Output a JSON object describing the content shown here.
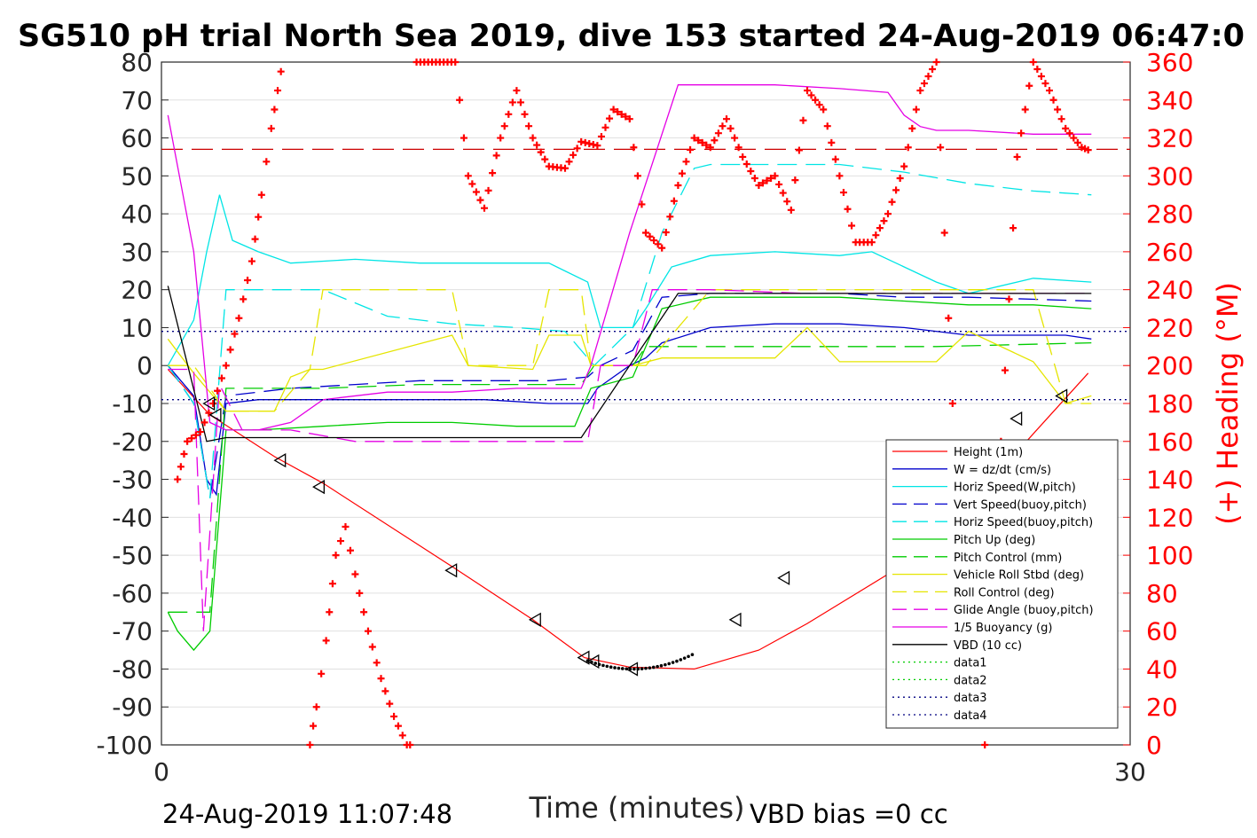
{
  "chart_data": {
    "type": "line",
    "title": "SG510 pH trial North Sea 2019, dive 153 started 24-Aug-2019 06:47:0",
    "xlabel": "Time (minutes)",
    "ylabel_right": "(+) Heading (°M)",
    "footer_left": "24-Aug-2019 11:07:48",
    "footer_right": "VBD bias =0 cc",
    "xlim": [
      0,
      30
    ],
    "ylim_left": [
      -100,
      80
    ],
    "ylim_right": [
      0,
      360
    ],
    "xticks": [
      "0",
      "30"
    ],
    "yticks_left": [
      "80",
      "70",
      "60",
      "50",
      "40",
      "30",
      "20",
      "10",
      "0",
      "-10",
      "-20",
      "-30",
      "-40",
      "-50",
      "-60",
      "-70",
      "-80",
      "-90",
      "-100"
    ],
    "yticks_right": [
      "360",
      "340",
      "320",
      "300",
      "280",
      "260",
      "240",
      "220",
      "200",
      "180",
      "160",
      "140",
      "120",
      "100",
      "80",
      "60",
      "40",
      "20",
      "0"
    ],
    "grid": true,
    "legend_position": "bottom-right",
    "series": [
      {
        "name": "Height (1m)",
        "color": "#ff0000",
        "style": "solid",
        "x": [
          0.2,
          1.5,
          3.5,
          5,
          9,
          11.5,
          13.1,
          14.5,
          16.5,
          18.5,
          20,
          22.5,
          25,
          27,
          28.7
        ],
        "y": [
          -1,
          -13,
          -24,
          -31,
          -53,
          -67,
          -77,
          -79.5,
          -80,
          -75,
          -68,
          -55,
          -37,
          -18,
          -2
        ]
      },
      {
        "name": "W = dz/dt (cm/s)",
        "color": "#0000cc",
        "style": "solid",
        "x": [
          0.2,
          1,
          1.4,
          1.7,
          2,
          3,
          4,
          6,
          8,
          10,
          12,
          13.2,
          13.5,
          14.5,
          15,
          15.5,
          17,
          19,
          21,
          23,
          25,
          26,
          28,
          28.8
        ],
        "y": [
          0,
          -8,
          -30,
          -34,
          -10,
          -9,
          -9,
          -9,
          -9,
          -9,
          -10,
          -10,
          -6,
          0,
          2,
          6,
          10,
          11,
          11,
          10,
          8,
          8,
          8,
          7
        ]
      },
      {
        "name": "Horiz Speed(W,pitch)",
        "color": "#00e5e5",
        "style": "solid",
        "x": [
          0.2,
          1,
          1.4,
          1.8,
          2.2,
          3,
          4,
          6,
          8,
          10,
          12,
          13.2,
          13.6,
          14.6,
          15,
          15.8,
          17,
          19,
          21,
          22,
          24,
          25,
          27,
          28.8
        ],
        "y": [
          0,
          12,
          30,
          45,
          33,
          30,
          27,
          28,
          27,
          27,
          27,
          22,
          10,
          10,
          15,
          26,
          29,
          30,
          29,
          30,
          22,
          19,
          23,
          22
        ]
      },
      {
        "name": "Vert Speed(buoy,pitch)",
        "color": "#0000cc",
        "style": "dashed",
        "x": [
          0.2,
          1,
          1.5,
          2,
          4,
          6,
          8,
          10,
          12,
          13.2,
          13.6,
          14.6,
          15.5,
          17,
          19,
          21,
          23,
          25,
          28.8
        ],
        "y": [
          0,
          -10,
          -35,
          -8,
          -6,
          -5,
          -4,
          -4,
          -4,
          -3,
          0,
          4,
          18,
          19,
          19,
          19,
          18,
          18,
          17
        ]
      },
      {
        "name": "Horiz Speed(buoy,pitch)",
        "color": "#00e5e5",
        "style": "dashed",
        "x": [
          0.2,
          1,
          1.5,
          2,
          3,
          4,
          5,
          7,
          9,
          11,
          12.5,
          13.4,
          14.6,
          15.5,
          16.5,
          17,
          19,
          21,
          23,
          25,
          27,
          28.8
        ],
        "y": [
          0,
          -10,
          -35,
          20,
          20,
          20,
          20,
          13,
          11,
          10,
          9,
          0,
          10,
          35,
          52,
          53,
          53,
          53,
          51,
          48,
          46,
          45
        ]
      },
      {
        "name": "Pitch Up (deg)",
        "color": "#00cc00",
        "style": "solid",
        "x": [
          0.2,
          0.5,
          1,
          1.5,
          2,
          3,
          5,
          7,
          9,
          11,
          12.8,
          13.3,
          14.6,
          15.5,
          17,
          19,
          21,
          23,
          25,
          27,
          28.8
        ],
        "y": [
          -65,
          -70,
          -75,
          -70,
          -17,
          -17,
          -16,
          -15,
          -15,
          -16,
          -16,
          -6,
          -3,
          15,
          18,
          18,
          18,
          17,
          16,
          16,
          15
        ]
      },
      {
        "name": "Pitch Control (mm)",
        "color": "#00cc00",
        "style": "dashed",
        "x": [
          0.2,
          1,
          1.5,
          2,
          5,
          8,
          11,
          13,
          13.4,
          14.6,
          15,
          17,
          20,
          24,
          28.8
        ],
        "y": [
          -65,
          -65,
          -65,
          -6,
          -6,
          -5,
          -5,
          -5,
          0,
          0,
          5,
          5,
          5,
          5,
          6
        ]
      },
      {
        "name": "Vehicle Roll Stbd (deg)",
        "color": "#e5e500",
        "style": "solid",
        "x": [
          0.2,
          1,
          2,
          3,
          3.5,
          4,
          4.6,
          5,
          9,
          9.5,
          11.5,
          12,
          13,
          13.3,
          14.6,
          15.5,
          17,
          19,
          20,
          21,
          24,
          25,
          27,
          28,
          28.8
        ],
        "y": [
          7,
          -2,
          -12,
          -12,
          -12,
          -3,
          -1,
          -1,
          8,
          0,
          -1,
          8,
          8,
          0,
          0,
          2,
          2,
          2,
          10,
          1,
          1,
          9,
          1,
          -10,
          -8
        ]
      },
      {
        "name": "Roll Control (deg)",
        "color": "#e5e500",
        "style": "dashed",
        "x": [
          0.2,
          1,
          2,
          3.5,
          4.6,
          5,
          9,
          9.5,
          11.5,
          12,
          13,
          13.3,
          15,
          17,
          19,
          21,
          23,
          25,
          27,
          28,
          28.8
        ],
        "y": [
          0,
          0,
          -12,
          -12,
          -1,
          20,
          20,
          0,
          0,
          20,
          20,
          0,
          0,
          20,
          20,
          20,
          20,
          20,
          20,
          -10,
          -10
        ]
      },
      {
        "name": "Glide Angle (buoy,pitch)",
        "color": "#e500e5",
        "style": "dashed",
        "x": [
          0.2,
          1,
          1.3,
          1.8,
          2.5,
          4,
          6,
          9,
          12,
          13.2,
          13.6,
          14.6,
          15.2,
          17,
          20,
          24,
          28.8
        ],
        "y": [
          -1,
          -1,
          -70,
          -5,
          -17,
          -17,
          -20,
          -20,
          -20,
          -20,
          0,
          0,
          20,
          20,
          19,
          19,
          19
        ]
      },
      {
        "name": "1/5 Buoyancy (g)",
        "color": "#e500e5",
        "style": "solid",
        "x": [
          0.2,
          1,
          1.5,
          2,
          3,
          4,
          5,
          7,
          9,
          11,
          13,
          13.3,
          14.5,
          16,
          17,
          19,
          21,
          22.5,
          23,
          23.5,
          24,
          25,
          27,
          28.8
        ],
        "y": [
          66,
          30,
          -15,
          -17,
          -17,
          -15,
          -9,
          -7,
          -7,
          -6,
          -6,
          0,
          35,
          74,
          74,
          74,
          73,
          72,
          66,
          63,
          62,
          62,
          61,
          61
        ]
      },
      {
        "name": "VBD (10 cc)",
        "color": "#000000",
        "style": "solid",
        "x": [
          0.2,
          1.4,
          2,
          4,
          8,
          12,
          13,
          14.5,
          16,
          17,
          20,
          24,
          28.8
        ],
        "y": [
          21,
          -20,
          -19,
          -19,
          -19,
          -19,
          -19,
          0,
          19,
          19,
          19,
          19,
          19
        ]
      },
      {
        "name": "data1",
        "color": "#00cc00",
        "style": "dotted",
        "x": [],
        "y": []
      },
      {
        "name": "data2",
        "color": "#00cc00",
        "style": "dotted",
        "x": [],
        "y": []
      },
      {
        "name": "data3",
        "color": "#000080",
        "style": "dotted",
        "x": [
          0,
          30
        ],
        "y": [
          9,
          9
        ]
      },
      {
        "name": "data4",
        "color": "#000080",
        "style": "dotted",
        "x": [
          0,
          30
        ],
        "y": [
          -9,
          -9
        ]
      }
    ],
    "heading_reference_deg": 314,
    "heading_series": {
      "axis": "right",
      "color": "#ff0000",
      "marker": "+",
      "x": [
        0.5,
        0.8,
        1.2,
        1.6,
        2,
        2.4,
        2.8,
        3.1,
        3.4,
        3.7,
        3.8,
        4.6,
        4.8,
        5.1,
        5.4,
        5.7,
        6,
        6.4,
        6.8,
        7.2,
        7.6,
        7.8,
        7.9,
        9.1,
        9.5,
        10,
        10.5,
        11,
        11.5,
        12,
        12.5,
        13,
        13.5,
        14,
        14.5,
        15,
        15.5,
        16,
        16.5,
        17,
        17.5,
        18,
        18.5,
        19,
        19.5,
        20,
        20.5,
        21,
        21.5,
        22,
        22.5,
        23,
        23.5,
        24,
        24.5,
        25,
        25.5,
        26,
        26.5,
        27,
        27.5,
        28,
        28.5,
        28.8
      ],
      "y": [
        140,
        160,
        165,
        180,
        200,
        225,
        255,
        290,
        325,
        355,
        360,
        0,
        20,
        55,
        100,
        115,
        90,
        60,
        35,
        15,
        0,
        0,
        360,
        360,
        300,
        283,
        320,
        345,
        320,
        305,
        304,
        318,
        316,
        335,
        330,
        270,
        262,
        295,
        320,
        315,
        330,
        310,
        295,
        300,
        282,
        345,
        335,
        300,
        265,
        265,
        280,
        305,
        345,
        360,
        180,
        60,
        0,
        160,
        310,
        360,
        345,
        325,
        315,
        313
      ]
    },
    "event_markers": {
      "marker": "triangle-left",
      "x": [
        1.5,
        1.7,
        3.7,
        4.9,
        9,
        11.6,
        13.1,
        13.4,
        14.6,
        17.8,
        19.3,
        26.5,
        27.9
      ],
      "y": [
        -10,
        -13,
        -25,
        -32,
        -54,
        -67,
        -77,
        -78,
        -80,
        -67,
        -56,
        -14,
        -8
      ]
    }
  },
  "legend": {
    "entries": [
      "Height (1m)",
      "W = dz/dt (cm/s)",
      "Horiz Speed(W,pitch)",
      "Vert Speed(buoy,pitch)",
      "Horiz Speed(buoy,pitch)",
      "Pitch Up (deg)",
      "Pitch Control (mm)",
      "Vehicle Roll Stbd (deg)",
      "Roll Control (deg)",
      "Glide Angle (buoy,pitch)",
      "1/5 Buoyancy (g)",
      "VBD (10 cc)",
      "data1",
      "data2",
      "data3",
      "data4"
    ]
  }
}
